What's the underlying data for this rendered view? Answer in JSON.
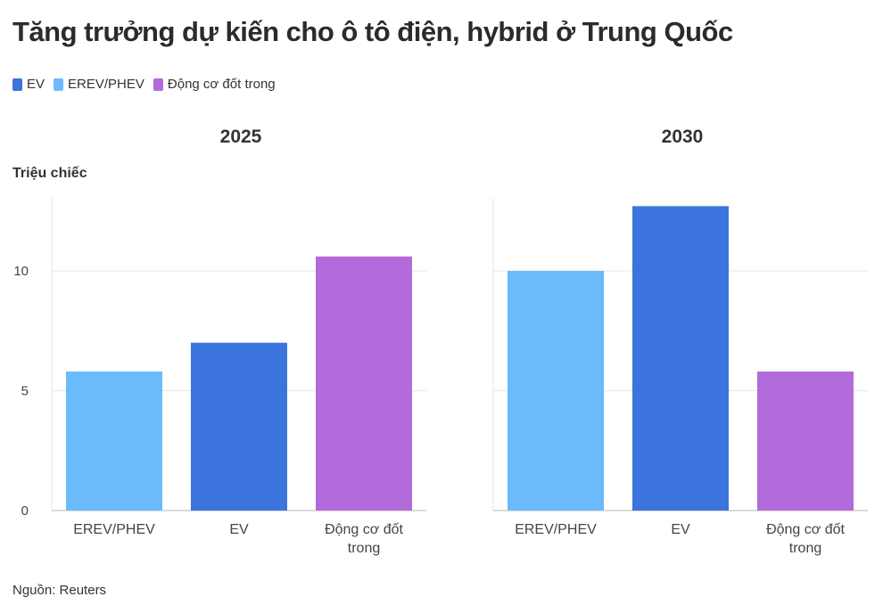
{
  "title": "Tăng trưởng dự kiến cho ô tô điện, hybrid ở Trung Quốc",
  "legend": [
    {
      "label": "EV",
      "color": "#3a74dc"
    },
    {
      "label": "EREV/PHEV",
      "color": "#6bbafc"
    },
    {
      "label": "Động cơ đốt trong",
      "color": "#b36adb"
    }
  ],
  "y_axis_title": "Triệu chiếc",
  "source": "Nguồn: Reuters",
  "chart_data": [
    {
      "type": "bar",
      "title": "2025",
      "categories": [
        "EREV/PHEV",
        "EV",
        "Động cơ đốt trong"
      ],
      "category_labels": [
        [
          "EREV/PHEV"
        ],
        [
          "EV"
        ],
        [
          "Động cơ đốt",
          "trong"
        ]
      ],
      "values": [
        5.8,
        7.0,
        10.6
      ],
      "colors": [
        "#6bbafc",
        "#3a74dc",
        "#b36adb"
      ],
      "ylabel": "Triệu chiếc",
      "ylim": [
        0,
        13
      ],
      "yticks": [
        0,
        5,
        10
      ],
      "grid": true
    },
    {
      "type": "bar",
      "title": "2030",
      "categories": [
        "EREV/PHEV",
        "EV",
        "Động cơ đốt trong"
      ],
      "category_labels": [
        [
          "EREV/PHEV"
        ],
        [
          "EV"
        ],
        [
          "Động cơ đốt",
          "trong"
        ]
      ],
      "values": [
        10.0,
        12.7,
        5.8
      ],
      "colors": [
        "#6bbafc",
        "#3a74dc",
        "#b36adb"
      ],
      "ylabel": "Triệu chiếc",
      "ylim": [
        0,
        13
      ],
      "yticks": [
        0,
        5,
        10
      ],
      "grid": true
    }
  ]
}
